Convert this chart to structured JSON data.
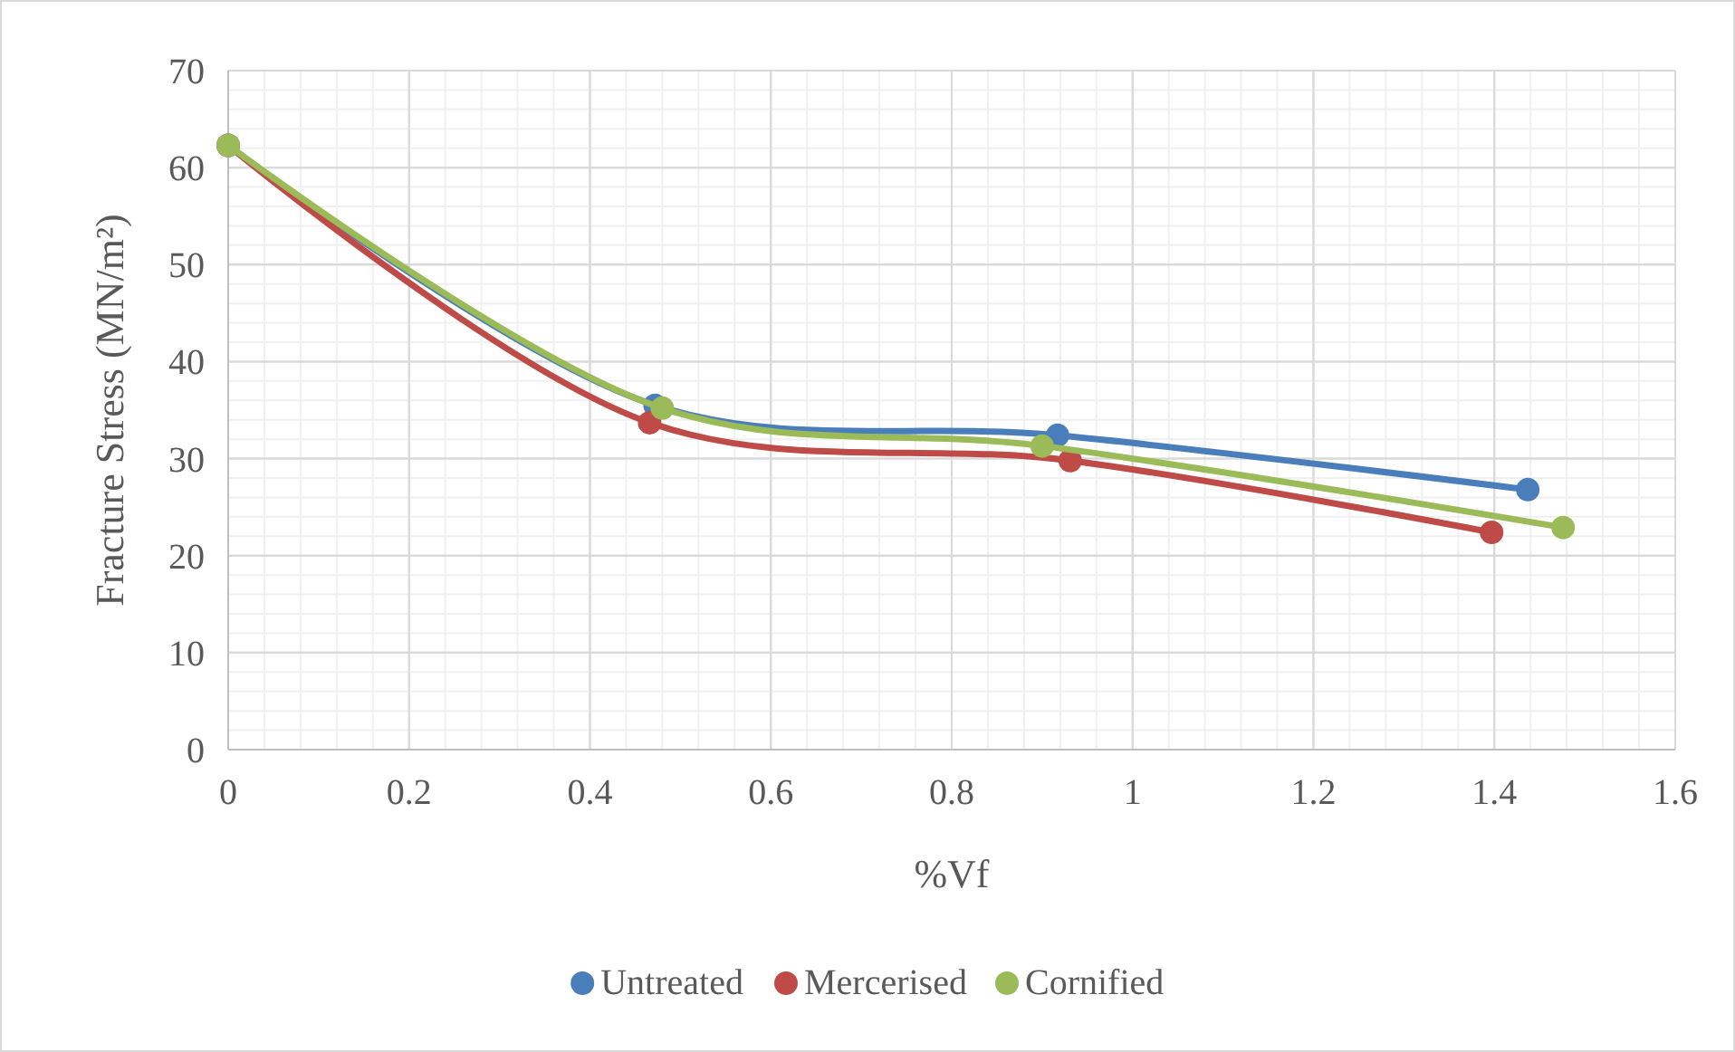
{
  "chart_data": {
    "type": "line",
    "xlabel": "%Vf",
    "ylabel": "Fracture Stress (MN/m²)",
    "xlim": [
      0,
      1.6
    ],
    "ylim": [
      0,
      70
    ],
    "xticks": [
      0,
      {
        "value": 0.04,
        "label": null
      },
      {
        "value": 0.08,
        "label": null
      },
      {
        "value": 0.12,
        "label": null
      },
      {
        "value": 0.16,
        "label": null
      },
      0.2,
      {
        "value": 0.24,
        "label": null
      },
      {
        "value": 0.28,
        "label": null
      },
      {
        "value": 0.32,
        "label": null
      },
      {
        "value": 0.36,
        "label": null
      },
      0.4,
      {
        "value": 0.44,
        "label": null
      },
      {
        "value": 0.48,
        "label": null
      },
      {
        "value": 0.52,
        "label": null
      },
      {
        "value": 0.56,
        "label": null
      },
      0.6,
      {
        "value": 0.64,
        "label": null
      },
      {
        "value": 0.68,
        "label": null
      },
      {
        "value": 0.72,
        "label": null
      },
      {
        "value": 0.76,
        "label": null
      },
      0.8,
      {
        "value": 0.84,
        "label": null
      },
      {
        "value": 0.88,
        "label": null
      },
      {
        "value": 0.92,
        "label": null
      },
      {
        "value": 0.96,
        "label": null
      },
      1,
      {
        "value": 1.04,
        "label": null
      },
      {
        "value": 1.08,
        "label": null
      },
      {
        "value": 1.12,
        "label": null
      },
      {
        "value": 1.16,
        "label": null
      },
      1.2,
      {
        "value": 1.24,
        "label": null
      },
      {
        "value": 1.28,
        "label": null
      },
      {
        "value": 1.32,
        "label": null
      },
      {
        "value": 1.36,
        "label": null
      },
      1.4,
      {
        "value": 1.44,
        "label": null
      },
      {
        "value": 1.48,
        "label": null
      },
      {
        "value": 1.52,
        "label": null
      },
      {
        "value": 1.56,
        "label": null
      },
      1.6
    ],
    "yticks": [
      0,
      {
        "value": 2,
        "label": null
      },
      {
        "value": 4,
        "label": null
      },
      {
        "value": 6,
        "label": null
      },
      {
        "value": 8,
        "label": null
      },
      10,
      {
        "value": 12,
        "label": null
      },
      {
        "value": 14,
        "label": null
      },
      {
        "value": 16,
        "label": null
      },
      {
        "value": 18,
        "label": null
      },
      20,
      {
        "value": 22,
        "label": null
      },
      {
        "value": 24,
        "label": null
      },
      {
        "value": 26,
        "label": null
      },
      {
        "value": 28,
        "label": null
      },
      30,
      {
        "value": 32,
        "label": null
      },
      {
        "value": 34,
        "label": null
      },
      {
        "value": 36,
        "label": null
      },
      {
        "value": 38,
        "label": null
      },
      40,
      {
        "value": 42,
        "label": null
      },
      {
        "value": 44,
        "label": null
      },
      {
        "value": 46,
        "label": null
      },
      {
        "value": 48,
        "label": null
      },
      50,
      {
        "value": 52,
        "label": null
      },
      {
        "value": 54,
        "label": null
      },
      {
        "value": 56,
        "label": null
      },
      {
        "value": 58,
        "label": null
      },
      60,
      {
        "value": 62,
        "label": null
      },
      {
        "value": 64,
        "label": null
      },
      {
        "value": 66,
        "label": null
      },
      {
        "value": 68,
        "label": null
      },
      70
    ],
    "grid": true,
    "legend": "bottom",
    "marker": "circle",
    "line_style": "solid",
    "series": [
      {
        "name": "Untreated",
        "color": "#4a7ebb",
        "x": [
          0,
          0.472,
          0.917,
          1.437
        ],
        "values": [
          62.3,
          35.5,
          32.4,
          26.8
        ]
      },
      {
        "name": "Mercerised",
        "color": "#be4b48",
        "x": [
          0,
          0.466,
          0.931,
          1.397
        ],
        "values": [
          62.3,
          33.7,
          29.8,
          22.4
        ]
      },
      {
        "name": "Cornified",
        "color": "#9bbb59",
        "x": [
          0,
          0.48,
          0.9,
          1.476
        ],
        "values": [
          62.3,
          35.2,
          31.3,
          22.9
        ]
      }
    ]
  }
}
